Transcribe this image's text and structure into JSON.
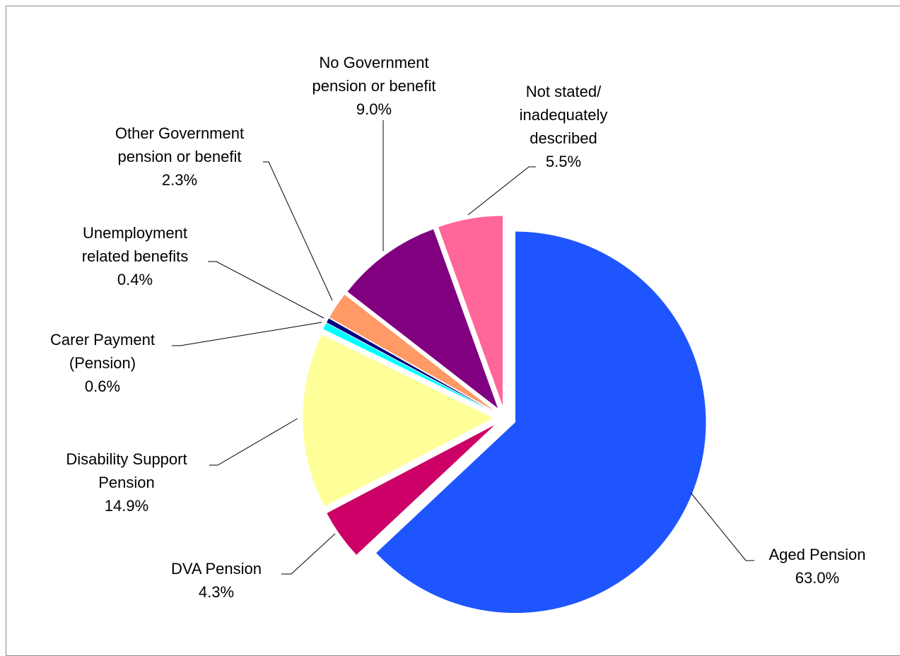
{
  "chart_data": {
    "type": "pie",
    "title": "",
    "start_angle_deg": 0,
    "direction": "clockwise",
    "slices": [
      {
        "label_lines": [
          "Aged Pension",
          "63.0%"
        ],
        "name": "Aged Pension",
        "value": 63.0,
        "percent_label": "63.0%",
        "color": "#1F55FF",
        "exploded": true
      },
      {
        "label_lines": [
          "DVA Pension",
          "4.3%"
        ],
        "name": "DVA Pension",
        "value": 4.3,
        "percent_label": "4.3%",
        "color": "#CC0066",
        "exploded": true
      },
      {
        "label_lines": [
          "Disability Support",
          "Pension",
          "14.9%"
        ],
        "name": "Disability Support Pension",
        "value": 14.9,
        "percent_label": "14.9%",
        "color": "#FFFF99",
        "exploded": true
      },
      {
        "label_lines": [
          "Carer Payment",
          "(Pension)",
          "0.6%"
        ],
        "name": "Carer Payment (Pension)",
        "value": 0.6,
        "percent_label": "0.6%",
        "color": "#00FFFF",
        "exploded": true
      },
      {
        "label_lines": [
          "Unemployment",
          "related benefits",
          "0.4%"
        ],
        "name": "Unemployment related benefits",
        "value": 0.4,
        "percent_label": "0.4%",
        "color": "#000080",
        "exploded": true
      },
      {
        "label_lines": [
          "Other Government",
          "pension or benefit",
          "2.3%"
        ],
        "name": "Other Government pension or benefit",
        "value": 2.3,
        "percent_label": "2.3%",
        "color": "#FF9966",
        "exploded": true
      },
      {
        "label_lines": [
          "No Government",
          "pension or benefit",
          "9.0%"
        ],
        "name": "No Government pension or benefit",
        "value": 9.0,
        "percent_label": "9.0%",
        "color": "#800080",
        "exploded": true
      },
      {
        "label_lines": [
          "Not stated/",
          "inadequately",
          "described",
          "5.5%"
        ],
        "name": "Not stated/ inadequately described",
        "value": 5.5,
        "percent_label": "5.5%",
        "color": "#FF6699",
        "exploded": true
      }
    ]
  }
}
